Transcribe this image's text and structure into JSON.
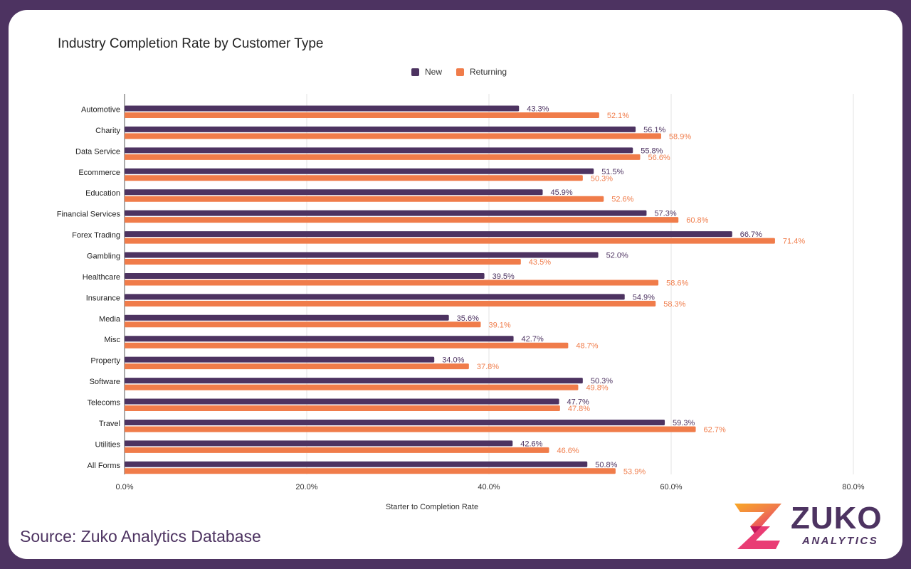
{
  "chart_data": {
    "type": "bar",
    "orientation": "horizontal",
    "title": "Industry Completion Rate by Customer Type",
    "xlabel": "Starter to Completion Rate",
    "ylabel": "",
    "xlim": [
      0,
      80
    ],
    "x_ticks": [
      "0.0%",
      "20.0%",
      "40.0%",
      "60.0%",
      "80.0%"
    ],
    "grid": true,
    "legend_position": "top-center",
    "categories": [
      "Automotive",
      "Charity",
      "Data Service",
      "Ecommerce",
      "Education",
      "Financial Services",
      "Forex Trading",
      "Gambling",
      "Healthcare",
      "Insurance",
      "Media",
      "Misc",
      "Property",
      "Software",
      "Telecoms",
      "Travel",
      "Utilities",
      "All Forms"
    ],
    "series": [
      {
        "name": "New",
        "color": "#4d3361",
        "values": [
          43.3,
          56.1,
          55.8,
          51.5,
          45.9,
          57.3,
          66.7,
          52.0,
          39.5,
          54.9,
          35.6,
          42.7,
          34.0,
          50.3,
          47.7,
          59.3,
          42.6,
          50.8
        ],
        "labels": [
          "43.3%",
          "56.1%",
          "55.8%",
          "51.5%",
          "45.9%",
          "57.3%",
          "66.7%",
          "52.0%",
          "39.5%",
          "54.9%",
          "35.6%",
          "42.7%",
          "34.0%",
          "50.3%",
          "47.7%",
          "59.3%",
          "42.6%",
          "50.8%"
        ]
      },
      {
        "name": "Returning",
        "color": "#f07c4a",
        "values": [
          52.1,
          58.9,
          56.6,
          50.3,
          52.6,
          60.8,
          71.4,
          43.5,
          58.6,
          58.3,
          39.1,
          48.7,
          37.8,
          49.8,
          47.8,
          62.7,
          46.6,
          53.9
        ],
        "labels": [
          "52.1%",
          "58.9%",
          "56.6%",
          "50.3%",
          "52.6%",
          "60.8%",
          "71.4%",
          "43.5%",
          "58.6%",
          "58.3%",
          "39.1%",
          "48.7%",
          "37.8%",
          "49.8%",
          "47.8%",
          "62.7%",
          "46.6%",
          "53.9%"
        ]
      }
    ]
  },
  "footer": {
    "source": "Source: Zuko Analytics Database"
  },
  "logo": {
    "word": "ZUKO",
    "sub": "ANALYTICS",
    "colors": [
      "#f9a825",
      "#f07c4a",
      "#e8336d",
      "#4d3361"
    ]
  }
}
